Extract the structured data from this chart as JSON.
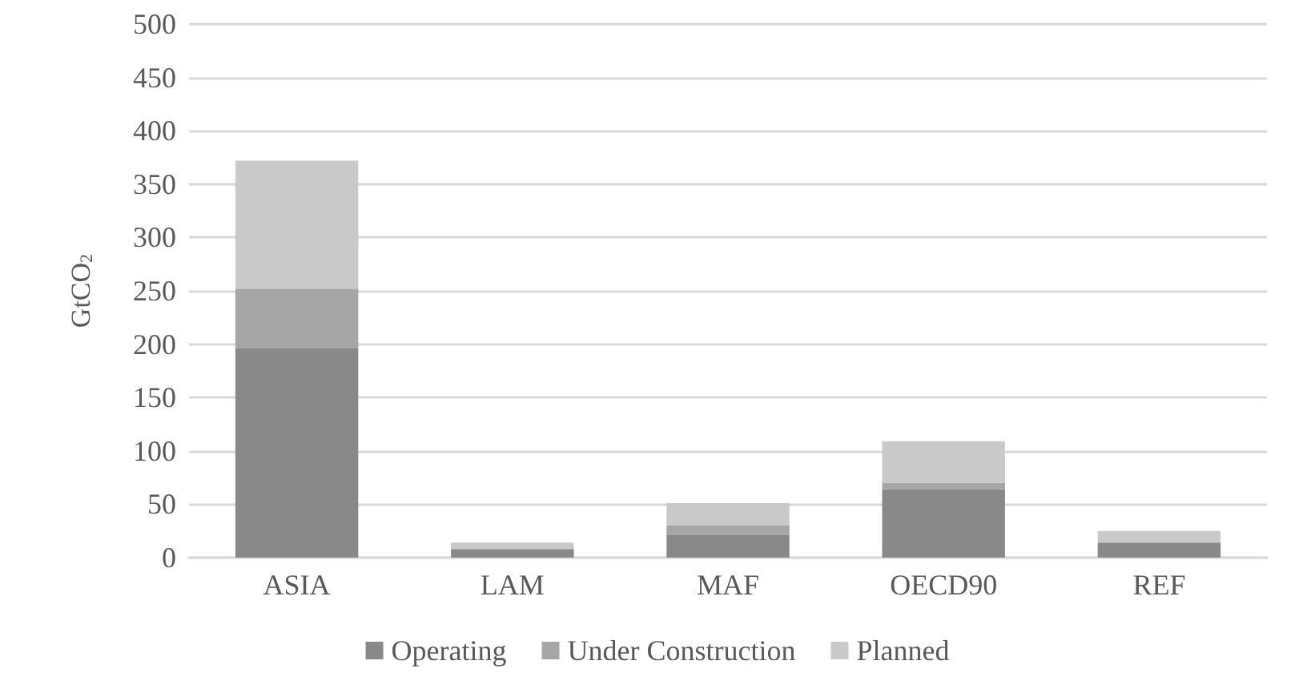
{
  "chart_data": {
    "type": "bar",
    "ylabel": "GtCO$_{2}$",
    "categories": [
      "ASIA",
      "LAM",
      "MAF",
      "OECD90",
      "REF"
    ],
    "series": [
      {
        "name": "Operating",
        "color": "#898989",
        "values": [
          196,
          8,
          21,
          64,
          14
        ]
      },
      {
        "name": "Under Construction",
        "color": "#a6a6a6",
        "values": [
          56,
          null,
          9,
          6,
          null
        ]
      },
      {
        "name": "Planned",
        "color": "#c9c9c9",
        "values": [
          120,
          6,
          21,
          39,
          11
        ]
      }
    ],
    "stacked": true,
    "ylim": [
      0,
      500
    ],
    "yticks": [
      0,
      50,
      100,
      150,
      200,
      250,
      300,
      350,
      400,
      450,
      500
    ],
    "grid": true,
    "legend": "bottom"
  }
}
